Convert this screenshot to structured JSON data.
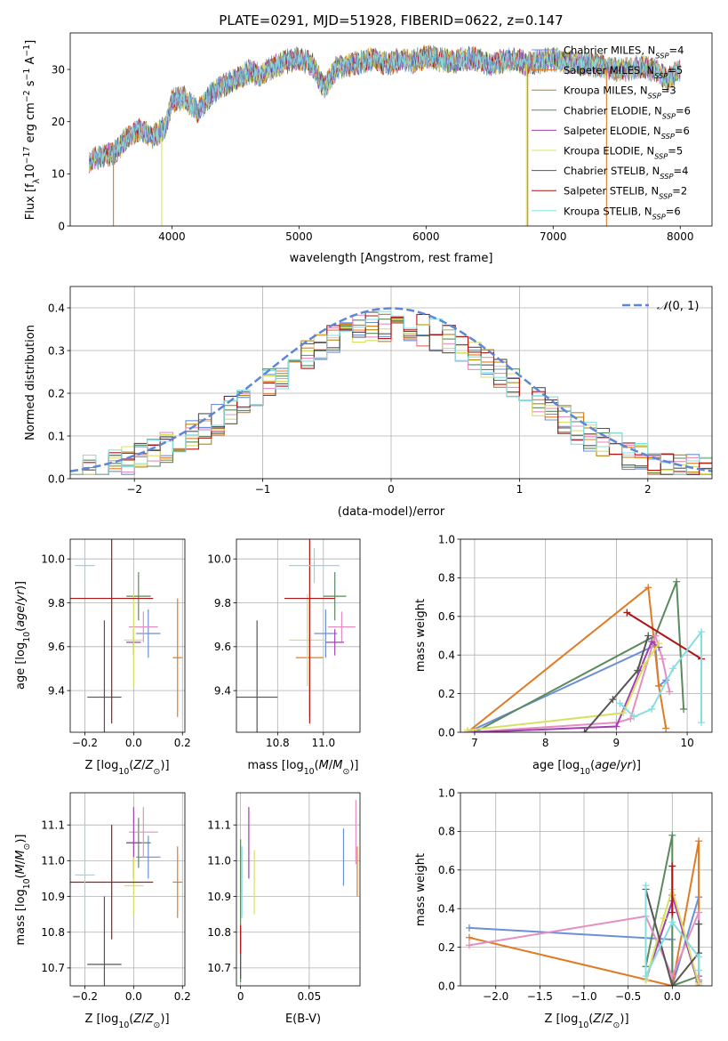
{
  "chart_data": [
    {
      "type": "line",
      "title": "PLATE=0291, MJD=51928, FIBERID=0622, z=0.147",
      "xlabel": "wavelength [Angstrom, rest frame]",
      "ylabel": "Flux [f_λ 10^-17 erg cm^-2 s^-1 A^-1]",
      "ylabel_parts": [
        "Flux [f",
        "λ",
        "10",
        "−17",
        " erg cm",
        "−2",
        " s",
        "−1",
        " A",
        "−1",
        "]"
      ],
      "xlim": [
        3200,
        8250
      ],
      "ylim": [
        0,
        37
      ],
      "xticks": [
        4000,
        5000,
        6000,
        7000,
        8000
      ],
      "yticks": [
        0,
        10,
        20,
        30
      ],
      "legend_position": "upper right",
      "series": [
        {
          "name": "Chabrier MILES, N_SSP=4",
          "label_base": "Chabrier MILES, N",
          "label_sub": "SSP",
          "label_tail": "=4",
          "color": "#6a8fd8"
        },
        {
          "name": "Salpeter MILES, N_SSP=5",
          "label_base": "Salpeter MILES, N",
          "label_sub": "SSP",
          "label_tail": "=5",
          "color": "#e07b22"
        },
        {
          "name": "Kroupa MILES, N_SSP=3",
          "label_base": "Kroupa MILES, N",
          "label_sub": "SSP",
          "label_tail": "=3",
          "color": "#b8860b"
        },
        {
          "name": "Chabrier ELODIE, N_SSP=6",
          "label_base": "Chabrier ELODIE, N",
          "label_sub": "SSP",
          "label_tail": "=6",
          "color": "#5a8a5e"
        },
        {
          "name": "Salpeter ELODIE, N_SSP=6",
          "label_base": "Salpeter ELODIE, N",
          "label_sub": "SSP",
          "label_tail": "=6",
          "color": "#a23fb5"
        },
        {
          "name": "Kroupa ELODIE, N_SSP=5",
          "label_base": "Kroupa ELODIE, N",
          "label_sub": "SSP",
          "label_tail": "=5",
          "color": "#d8e060"
        },
        {
          "name": "Chabrier STELIB, N_SSP=4",
          "label_base": "Chabrier STELIB, N",
          "label_sub": "SSP",
          "label_tail": "=4",
          "color": "#555555"
        },
        {
          "name": "Salpeter STELIB, N_SSP=2",
          "label_base": "Salpeter STELIB, N",
          "label_sub": "SSP",
          "label_tail": "=2",
          "color": "#b01515"
        },
        {
          "name": "Kroupa STELIB, N_SSP=6",
          "label_base": "Kroupa STELIB, N",
          "label_sub": "SSP",
          "label_tail": "=6",
          "color": "#88dde0"
        }
      ],
      "spectrum_envelope": {
        "x": [
          3350,
          3450,
          3550,
          3650,
          3750,
          3850,
          3950,
          4000,
          4100,
          4200,
          4300,
          4400,
          4500,
          4600,
          4700,
          4800,
          4900,
          5000,
          5100,
          5200,
          5300,
          5400,
          5500,
          5600,
          5700,
          5800,
          5900,
          6000,
          6100,
          6200,
          6300,
          6400,
          6500,
          6600,
          6700,
          6800,
          6900,
          7000,
          7100,
          7200,
          7300,
          7400,
          7500,
          7600,
          7700,
          7800,
          7900,
          8000
        ],
        "y": [
          12.5,
          13.5,
          14.0,
          17.0,
          18.5,
          17.0,
          19.0,
          24.0,
          24.5,
          22.0,
          25.0,
          27.0,
          28.0,
          29.5,
          29.0,
          30.5,
          31.5,
          32.0,
          31.0,
          26.5,
          30.5,
          31.0,
          31.5,
          32.0,
          31.0,
          32.0,
          31.5,
          32.5,
          32.0,
          31.5,
          32.0,
          32.0,
          31.0,
          31.5,
          32.0,
          31.0,
          31.5,
          32.0,
          31.5,
          31.0,
          31.0,
          30.5,
          30.0,
          30.0,
          30.5,
          30.0,
          28.0,
          30.0
        ]
      },
      "line_drops": [
        {
          "x": 3540,
          "y_from": 14,
          "color": "#e07b22"
        },
        {
          "x": 3920,
          "y_from": 17,
          "color": "#d8e060"
        },
        {
          "x": 6790,
          "y_from": 31,
          "color": "#d8e060"
        },
        {
          "x": 6800,
          "y_from": 31,
          "color": "#e07b22"
        },
        {
          "x": 7420,
          "y_from": 30,
          "color": "#e07b22"
        }
      ]
    },
    {
      "type": "histogram",
      "xlabel": "(data-model)/error",
      "ylabel": "Normed distribution",
      "xlim": [
        -2.5,
        2.5
      ],
      "ylim": [
        0,
        0.45
      ],
      "xticks": [
        -2,
        -1,
        0,
        1,
        2
      ],
      "yticks": [
        0.0,
        0.1,
        0.2,
        0.3,
        0.4
      ],
      "reference_curve": {
        "name": "N(0,1)",
        "label_script": "𝒩",
        "label_args": "(0, 1)",
        "color": "#5f86d6"
      },
      "bin_width": 0.1,
      "bin_start": -2.5,
      "series_colors": [
        "#6a8fd8",
        "#e07b22",
        "#b8860b",
        "#5a8a5e",
        "#e58fc0",
        "#d8e060",
        "#555555",
        "#b01515",
        "#88dde0"
      ]
    },
    {
      "type": "scatter",
      "xlabel": "Z [log10(Z/Z⊙)]",
      "ylabel": "age  [log10(age/yr)]",
      "xlim": [
        -0.26,
        0.21
      ],
      "ylim": [
        9.21,
        10.09
      ],
      "xticks": [
        -0.2,
        0.0,
        0.2
      ],
      "yticks": [
        9.4,
        9.6,
        9.8,
        10.0
      ],
      "points": [
        {
          "x": 0.06,
          "y": 9.66,
          "xerr": 0.05,
          "yerr": 0.11,
          "color": "#6a8fd8"
        },
        {
          "x": 0.18,
          "y": 9.55,
          "xerr": 0.02,
          "yerr": 0.27,
          "color": "#e07b22"
        },
        {
          "x": 0.02,
          "y": 9.83,
          "xerr": 0.05,
          "yerr": 0.11,
          "color": "#5a8a5e"
        },
        {
          "x": 0.04,
          "y": 9.69,
          "xerr": 0.06,
          "yerr": 0.07,
          "color": "#e58fc0"
        },
        {
          "x": 0.0,
          "y": 9.62,
          "xerr": 0.03,
          "yerr": 0.06,
          "color": "#a23fb5"
        },
        {
          "x": 0.0,
          "y": 9.63,
          "xerr": 0.04,
          "yerr": 0.21,
          "color": "#d8e060"
        },
        {
          "x": -0.12,
          "y": 9.37,
          "xerr": 0.07,
          "yerr": 0.35,
          "color": "#555555"
        },
        {
          "x": -0.09,
          "y": 9.82,
          "xerr": 0.17,
          "yerr": 0.57,
          "color": "#b01515"
        },
        {
          "x": -0.2,
          "y": 9.97,
          "xerr": 0.04,
          "yerr": 0.08,
          "color": "#88dde0"
        }
      ]
    },
    {
      "type": "scatter",
      "xlabel": "mass [log10(M/M⊙)]",
      "ylabel": "",
      "xlim": [
        10.62,
        11.16
      ],
      "ylim": [
        9.21,
        10.09
      ],
      "xticks": [
        10.8,
        11.0
      ],
      "yticks": [
        9.4,
        9.6,
        9.8,
        10.0
      ],
      "points": [
        {
          "x": 11.01,
          "y": 9.66,
          "xerr": 0.05,
          "yerr": 0.11,
          "color": "#6a8fd8"
        },
        {
          "x": 10.94,
          "y": 9.55,
          "xerr": 0.06,
          "yerr": 0.27,
          "color": "#e07b22"
        },
        {
          "x": 11.05,
          "y": 9.83,
          "xerr": 0.05,
          "yerr": 0.11,
          "color": "#5a8a5e"
        },
        {
          "x": 11.08,
          "y": 9.69,
          "xerr": 0.06,
          "yerr": 0.07,
          "color": "#e58fc0"
        },
        {
          "x": 11.05,
          "y": 9.62,
          "xerr": 0.04,
          "yerr": 0.06,
          "color": "#a23fb5"
        },
        {
          "x": 10.93,
          "y": 9.63,
          "xerr": 0.08,
          "yerr": 0.21,
          "color": "#d8e060"
        },
        {
          "x": 10.71,
          "y": 9.37,
          "xerr": 0.09,
          "yerr": 0.35,
          "color": "#555555"
        },
        {
          "x": 10.94,
          "y": 9.82,
          "xerr": 0.11,
          "yerr": 0.57,
          "color": "#b01515"
        },
        {
          "x": 10.96,
          "y": 9.97,
          "xerr": 0.11,
          "yerr": 0.08,
          "color": "#88dde0"
        }
      ]
    },
    {
      "type": "line",
      "xlabel": "age  [log10(age/yr)]",
      "ylabel": "mass weight",
      "xlim": [
        6.8,
        10.35
      ],
      "ylim": [
        0,
        1
      ],
      "xticks": [
        7,
        8,
        9,
        10
      ],
      "yticks": [
        0.0,
        0.2,
        0.4,
        0.6,
        0.8,
        1.0
      ],
      "series": [
        {
          "color": "#6a8fd8",
          "x": [
            6.9,
            9.55,
            9.6,
            9.7
          ],
          "y": [
            0.0,
            0.45,
            0.24,
            0.27
          ]
        },
        {
          "color": "#e07b22",
          "x": [
            6.9,
            9.45,
            9.6,
            9.7
          ],
          "y": [
            0.0,
            0.75,
            0.24,
            0.02
          ]
        },
        {
          "color": "#5a8a5e",
          "x": [
            7.0,
            9.55,
            9.85,
            9.95
          ],
          "y": [
            0.0,
            0.5,
            0.78,
            0.12
          ]
        },
        {
          "color": "#e58fc0",
          "x": [
            6.9,
            9.0,
            9.2,
            9.55,
            9.65,
            9.75
          ],
          "y": [
            0.0,
            0.05,
            0.07,
            0.5,
            0.38,
            0.21
          ]
        },
        {
          "color": "#a23fb5",
          "x": [
            7.0,
            9.0,
            9.5,
            9.6
          ],
          "y": [
            0.0,
            0.03,
            0.47,
            0.44
          ]
        },
        {
          "color": "#d8e060",
          "x": [
            6.9,
            9.1,
            9.4,
            9.6
          ],
          "y": [
            0.01,
            0.1,
            0.35,
            0.46
          ]
        },
        {
          "color": "#555555",
          "x": [
            8.55,
            8.95,
            9.3,
            9.45
          ],
          "y": [
            0.0,
            0.17,
            0.32,
            0.5
          ]
        },
        {
          "color": "#b01515",
          "x": [
            9.15,
            10.2
          ],
          "y": [
            0.62,
            0.38
          ]
        },
        {
          "color": "#88dde0",
          "x": [
            9.05,
            9.25,
            9.5,
            9.8,
            10.2,
            10.2
          ],
          "y": [
            0.15,
            0.08,
            0.12,
            0.33,
            0.52,
            0.05
          ]
        }
      ]
    },
    {
      "type": "scatter",
      "xlabel": "Z [log10(Z/Z⊙)]",
      "ylabel": "mass [log10(M/M⊙)]",
      "xlim": [
        -0.26,
        0.21
      ],
      "ylim": [
        10.65,
        11.19
      ],
      "xticks": [
        -0.2,
        0.0,
        0.2
      ],
      "yticks": [
        10.7,
        10.8,
        10.9,
        11.0,
        11.1
      ],
      "points": [
        {
          "x": 0.06,
          "y": 11.01,
          "xerr": 0.05,
          "yerr": 0.06,
          "color": "#6a8fd8"
        },
        {
          "x": 0.18,
          "y": 10.94,
          "xerr": 0.02,
          "yerr": 0.1,
          "color": "#e07b22"
        },
        {
          "x": 0.02,
          "y": 11.05,
          "xerr": 0.05,
          "yerr": 0.07,
          "color": "#5a8a5e"
        },
        {
          "x": 0.04,
          "y": 11.08,
          "xerr": 0.06,
          "yerr": 0.07,
          "color": "#e58fc0"
        },
        {
          "x": 0.0,
          "y": 11.05,
          "xerr": 0.03,
          "yerr": 0.1,
          "color": "#a23fb5"
        },
        {
          "x": 0.0,
          "y": 10.93,
          "xerr": 0.04,
          "yerr": 0.08,
          "color": "#d8e060"
        },
        {
          "x": -0.12,
          "y": 10.71,
          "xerr": 0.07,
          "yerr": 0.19,
          "color": "#555555"
        },
        {
          "x": -0.09,
          "y": 10.94,
          "xerr": 0.17,
          "yerr": 0.16,
          "color": "#b01515"
        },
        {
          "x": -0.2,
          "y": 10.96,
          "xerr": 0.04,
          "yerr": 0.15,
          "color": "#88dde0"
        }
      ]
    },
    {
      "type": "scatter",
      "xlabel": "E(B-V)",
      "ylabel": "",
      "xlim": [
        -0.003,
        0.087
      ],
      "ylim": [
        10.65,
        11.19
      ],
      "xticks": [
        0.0,
        0.05
      ],
      "yticks": [
        10.7,
        10.8,
        10.9,
        11.0,
        11.1
      ],
      "points": [
        {
          "x": 0.075,
          "y": 11.01,
          "xerr": 0.0,
          "yerr": 0.08,
          "color": "#6a8fd8"
        },
        {
          "x": 0.085,
          "y": 10.97,
          "xerr": 0.0,
          "yerr": 0.07,
          "color": "#e07b22"
        },
        {
          "x": 0.0,
          "y": 10.86,
          "xerr": 0.0,
          "yerr": 0.2,
          "color": "#5a8a5e"
        },
        {
          "x": 0.084,
          "y": 11.08,
          "xerr": 0.0,
          "yerr": 0.09,
          "color": "#e58fc0"
        },
        {
          "x": 0.006,
          "y": 11.05,
          "xerr": 0.0,
          "yerr": 0.1,
          "color": "#a23fb5"
        },
        {
          "x": 0.01,
          "y": 10.94,
          "xerr": 0.0,
          "yerr": 0.09,
          "color": "#d8e060"
        },
        {
          "x": 0.0,
          "y": 10.74,
          "xerr": 0.0,
          "yerr": 0.07,
          "color": "#555555"
        },
        {
          "x": 0.0,
          "y": 10.78,
          "xerr": 0.0,
          "yerr": 0.04,
          "color": "#b01515"
        },
        {
          "x": 0.001,
          "y": 10.94,
          "xerr": 0.0,
          "yerr": 0.1,
          "color": "#88dde0"
        }
      ]
    },
    {
      "type": "line",
      "xlabel": "Z [log10(Z/Z⊙)]",
      "ylabel": "mass weight",
      "xlim": [
        -2.4,
        0.45
      ],
      "ylim": [
        0,
        1
      ],
      "xticks": [
        -2.0,
        -1.5,
        -1.0,
        -0.5,
        0.0
      ],
      "yticks": [
        0.0,
        0.2,
        0.4,
        0.6,
        0.8,
        1.0
      ],
      "series": [
        {
          "color": "#6a8fd8",
          "x": [
            -2.3,
            0.0,
            0.0,
            0.3,
            0.3
          ],
          "y": [
            0.3,
            0.24,
            0.0,
            0.46,
            0.03
          ]
        },
        {
          "color": "#e07b22",
          "x": [
            -2.3,
            0.0,
            0.3,
            0.3
          ],
          "y": [
            0.25,
            0.0,
            0.75,
            0.02
          ]
        },
        {
          "color": "#5a8a5e",
          "x": [
            -0.3,
            0.0,
            0.0,
            0.3
          ],
          "y": [
            0.1,
            0.78,
            0.0,
            0.05
          ]
        },
        {
          "color": "#e58fc0",
          "x": [
            -2.3,
            -0.3,
            0.0,
            0.3,
            0.3
          ],
          "y": [
            0.21,
            0.36,
            0.05,
            0.38,
            0.0
          ]
        },
        {
          "color": "#a23fb5",
          "x": [
            -0.3,
            0.0,
            0.0,
            0.3
          ],
          "y": [
            0.03,
            0.44,
            0.47,
            0.0
          ]
        },
        {
          "color": "#d8e060",
          "x": [
            -0.3,
            -0.1,
            0.0,
            0.3
          ],
          "y": [
            0.03,
            0.35,
            0.5,
            0.01
          ]
        },
        {
          "color": "#555555",
          "x": [
            -0.3,
            0.0,
            0.3,
            0.3
          ],
          "y": [
            0.5,
            0.0,
            0.17,
            0.32
          ]
        },
        {
          "color": "#b01515",
          "x": [
            0.0,
            0.0
          ],
          "y": [
            0.62,
            0.38
          ]
        },
        {
          "color": "#88dde0",
          "x": [
            -0.3,
            -0.3,
            0.0,
            0.3,
            0.3
          ],
          "y": [
            0.52,
            0.05,
            0.33,
            0.15,
            0.08
          ]
        }
      ]
    }
  ]
}
